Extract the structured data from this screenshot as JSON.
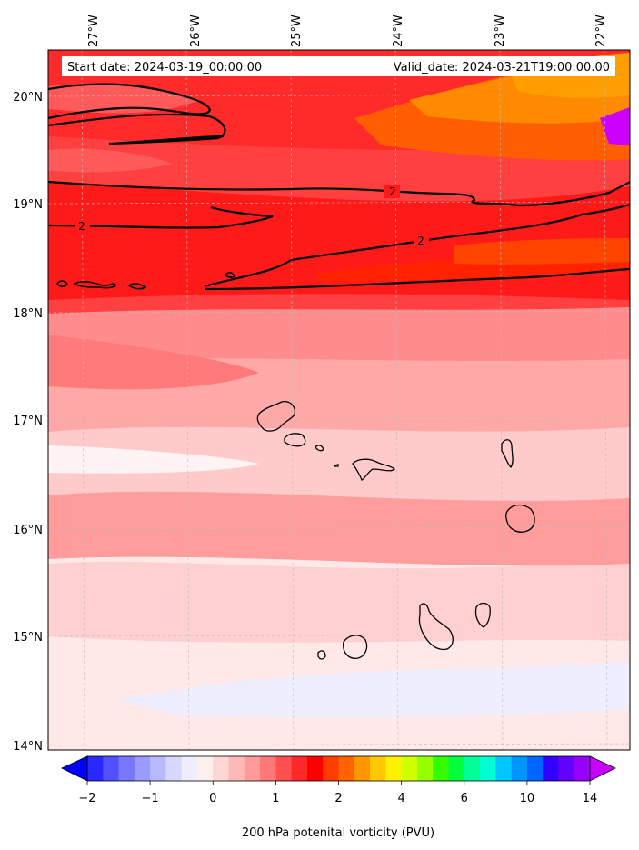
{
  "header": {
    "start_date": "Start date: 2024-03-19_00:00:00",
    "valid_date": "Valid_date: 2024-03-21T19:00:00.00"
  },
  "map": {
    "lon_labels": [
      "27°W",
      "26°W",
      "25°W",
      "24°W",
      "23°W",
      "22°W"
    ],
    "lat_labels": [
      "20°N",
      "19°N",
      "18°N",
      "17°N",
      "16°N",
      "15°N",
      "14°N"
    ],
    "contour_level_label": "2"
  },
  "colorbar": {
    "tick_labels": [
      "−2",
      "−1",
      "0",
      "1",
      "2",
      "4",
      "6",
      "10",
      "14"
    ],
    "label": "200 hPa potenital vorticity (PVU)",
    "colors": [
      "#0000ff",
      "#2828ff",
      "#5050ff",
      "#7878ff",
      "#9a9aff",
      "#b8b8ff",
      "#d6d6ff",
      "#eeeeff",
      "#ffeeee",
      "#ffd6d6",
      "#ffb8b8",
      "#ff9a9a",
      "#ff7878",
      "#ff5050",
      "#ff2828",
      "#ff0000",
      "#ff3c00",
      "#ff6400",
      "#ff9600",
      "#ffc800",
      "#fff000",
      "#d2ff00",
      "#96ff00",
      "#32ff00",
      "#00ff3c",
      "#00ff96",
      "#00ffd2",
      "#00c8ff",
      "#0096ff",
      "#0064ff",
      "#3200ff",
      "#6400ff",
      "#9600ff",
      "#c800ff"
    ]
  }
}
